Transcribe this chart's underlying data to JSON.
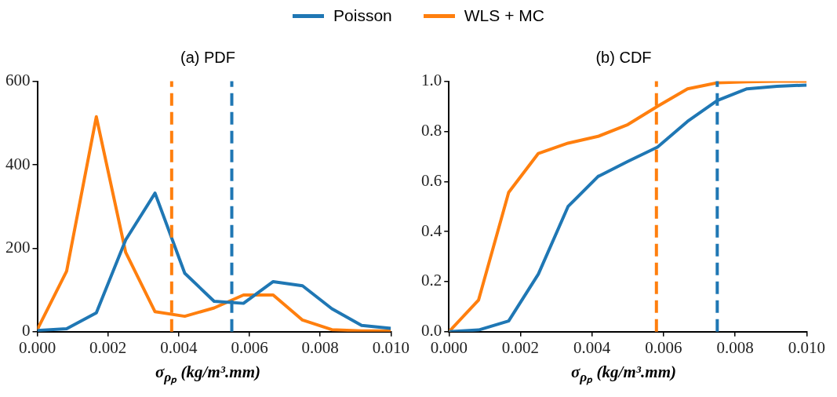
{
  "chart_data": [
    {
      "type": "line",
      "title": "(a) PDF",
      "xlabel": "σ$_{ρₚ}$ (kg/m³.mm)",
      "legend": "top",
      "grid": false,
      "x": [
        0,
        0.00083,
        0.00167,
        0.0025,
        0.00333,
        0.00417,
        0.005,
        0.00583,
        0.00667,
        0.0075,
        0.00833,
        0.00917,
        0.01
      ],
      "series": [
        {
          "name": "Poisson",
          "color": "#1f77b4",
          "values": [
            3,
            7,
            45,
            220,
            332,
            140,
            73,
            68,
            120,
            110,
            55,
            15,
            8
          ]
        },
        {
          "name": "WLS + MC",
          "color": "#ff7f0e",
          "values": [
            5,
            145,
            515,
            190,
            48,
            37,
            57,
            88,
            88,
            28,
            5,
            2,
            2
          ]
        }
      ],
      "xlim": [
        0,
        0.01
      ],
      "xticks": [
        {
          "value": 0,
          "label": "0.000"
        },
        {
          "value": 0.002,
          "label": "0.002"
        },
        {
          "value": 0.004,
          "label": "0.004"
        },
        {
          "value": 0.006,
          "label": "0.006"
        },
        {
          "value": 0.008,
          "label": "0.008"
        },
        {
          "value": 0.01,
          "label": "0.010"
        }
      ],
      "ylim": [
        0,
        600
      ],
      "yticks": [
        0,
        200,
        400,
        600
      ],
      "ref_lines": [
        {
          "axis": "x",
          "value": 0.0038,
          "color": "#ff7f0e",
          "line_style": "dashed"
        },
        {
          "axis": "x",
          "value": 0.0055,
          "color": "#1f77b4",
          "line_style": "dashed"
        }
      ]
    },
    {
      "type": "line",
      "title": "(b) CDF",
      "xlabel": "σ$_{ρₚ}$ (kg/m³.mm)",
      "grid": false,
      "x": [
        0,
        0.00083,
        0.00167,
        0.0025,
        0.00333,
        0.00417,
        0.005,
        0.00583,
        0.00667,
        0.0075,
        0.00833,
        0.00917,
        0.01
      ],
      "series": [
        {
          "color": "#1f77b4",
          "values": [
            0,
            0.007,
            0.043,
            0.23,
            0.5,
            0.62,
            0.68,
            0.737,
            0.84,
            0.923,
            0.97,
            0.98,
            0.985
          ]
        },
        {
          "color": "#ff7f0e",
          "values": [
            0,
            0.127,
            0.556,
            0.712,
            0.753,
            0.78,
            0.827,
            0.9,
            0.97,
            0.994,
            0.998,
            1,
            1
          ]
        }
      ],
      "xlim": [
        0,
        0.01
      ],
      "xticks": [
        {
          "value": 0,
          "label": "0.000"
        },
        {
          "value": 0.002,
          "label": "0.002"
        },
        {
          "value": 0.004,
          "label": "0.004"
        },
        {
          "value": 0.006,
          "label": "0.006"
        },
        {
          "value": 0.008,
          "label": "0.008"
        },
        {
          "value": 0.01,
          "label": "0.010"
        }
      ],
      "ylim": [
        0,
        1
      ],
      "yticks": [
        {
          "value": 0,
          "label": "0.0"
        },
        {
          "value": 0.2,
          "label": "0.2"
        },
        {
          "value": 0.4,
          "label": "0.4"
        },
        {
          "value": 0.6,
          "label": "0.6"
        },
        {
          "value": 0.8,
          "label": "0.8"
        },
        {
          "value": 1,
          "label": "1.0"
        }
      ],
      "ref_lines": [
        {
          "axis": "x",
          "value": 0.0058,
          "color": "#ff7f0e",
          "line_style": "dashed"
        },
        {
          "axis": "x",
          "value": 0.0075,
          "color": "#1f77b4",
          "line_style": "dashed"
        }
      ]
    }
  ]
}
